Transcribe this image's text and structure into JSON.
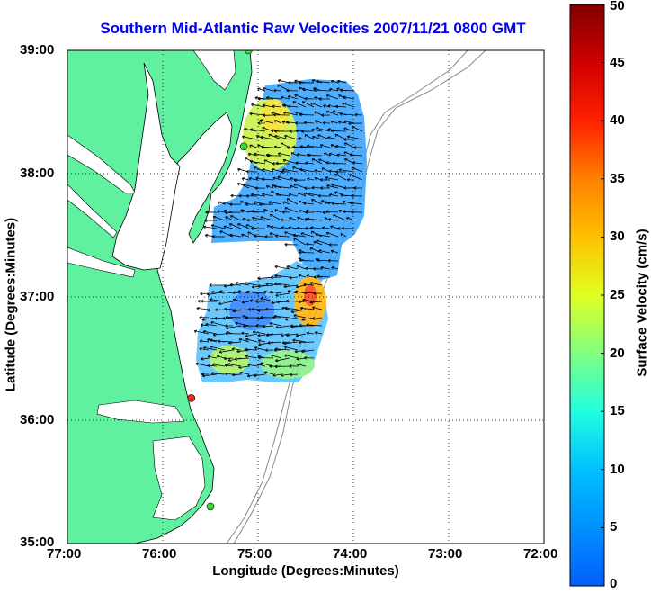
{
  "title": "Southern Mid-Atlantic Raw Velocities 2007/11/21 0800 GMT",
  "x_axis": {
    "label": "Longitude (Degrees:Minutes)",
    "ticks": [
      "77:00",
      "76:00",
      "75:00",
      "74:00",
      "73:00",
      "72:00"
    ]
  },
  "y_axis": {
    "label": "Latitude (Degrees:Minutes)",
    "ticks": [
      "39:00",
      "38:00",
      "37:00",
      "36:00",
      "35:00"
    ]
  },
  "colorbar": {
    "label": "Surface Velocity (cm/s)",
    "ticks": [
      "50",
      "45",
      "40",
      "35",
      "30",
      "25",
      "20",
      "15",
      "10",
      "5",
      "0"
    ],
    "min": 0,
    "max": 50
  },
  "map": {
    "lon_range": [
      -77,
      -72
    ],
    "lat_range": [
      35,
      39
    ],
    "land_color": "#5ff0a0",
    "grid": "dotted",
    "stations": [
      {
        "name": "station-north",
        "lon": -75.1,
        "lat": 39.0,
        "color": "#33dd33"
      },
      {
        "name": "station-delmarva",
        "lon": -75.15,
        "lat": 38.22,
        "color": "#33dd33"
      },
      {
        "name": "station-virginia-beach",
        "lon": -75.7,
        "lat": 36.18,
        "color": "#ff2222"
      },
      {
        "name": "station-hatteras",
        "lon": -75.5,
        "lat": 35.3,
        "color": "#33dd33"
      }
    ]
  }
}
